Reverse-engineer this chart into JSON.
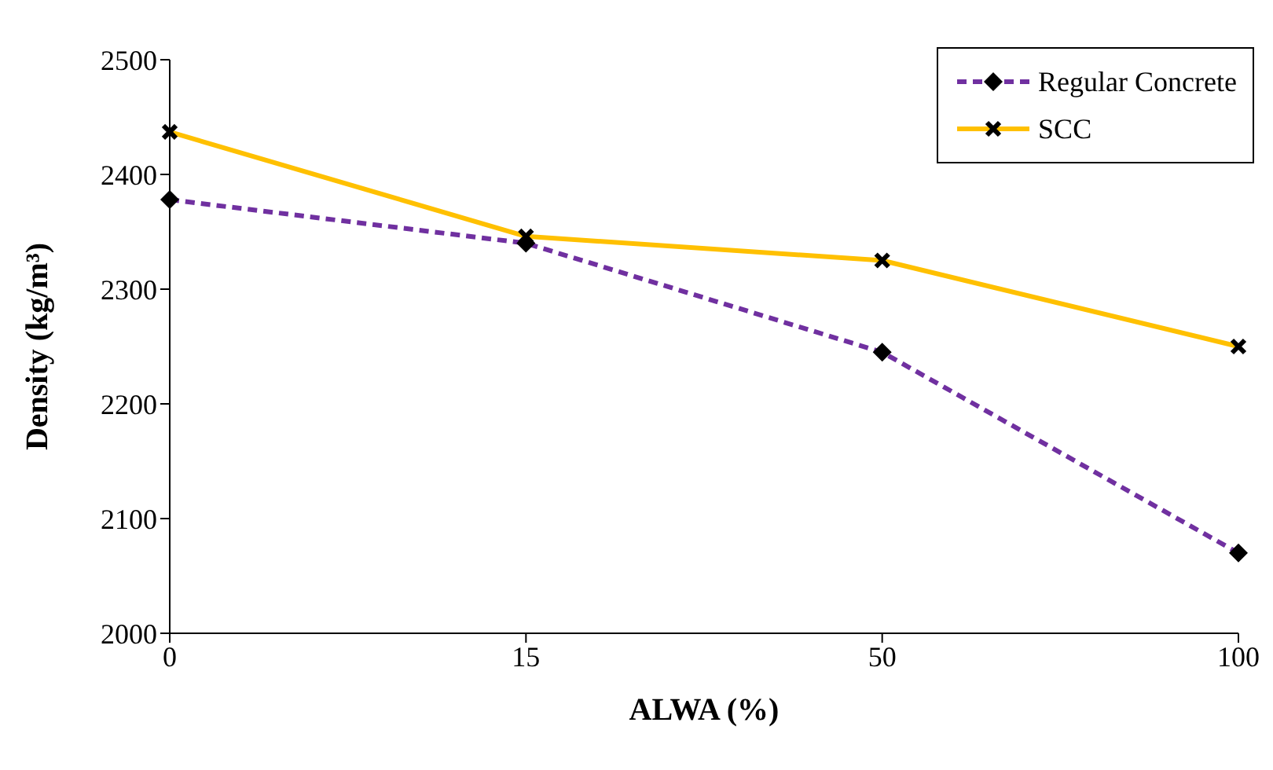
{
  "chart_data": {
    "type": "line",
    "xlabel": "ALWA (%)",
    "ylabel": "Density (kg/m³)",
    "categories": [
      "0",
      "15",
      "50",
      "100"
    ],
    "series": [
      {
        "name": "Regular Concrete",
        "color": "#7030a0",
        "values": [
          2378,
          2340,
          2245,
          2070
        ],
        "line_style": "dashed",
        "marker": "diamond"
      },
      {
        "name": "SCC",
        "color": "#ffc000",
        "values": [
          2437,
          2346,
          2325,
          2250
        ],
        "line_style": "solid",
        "marker": "cross"
      }
    ],
    "ylim": [
      2000,
      2500
    ],
    "yticks": [
      2000,
      2100,
      2200,
      2300,
      2400,
      2500
    ],
    "grid": false,
    "legend": "top right"
  }
}
